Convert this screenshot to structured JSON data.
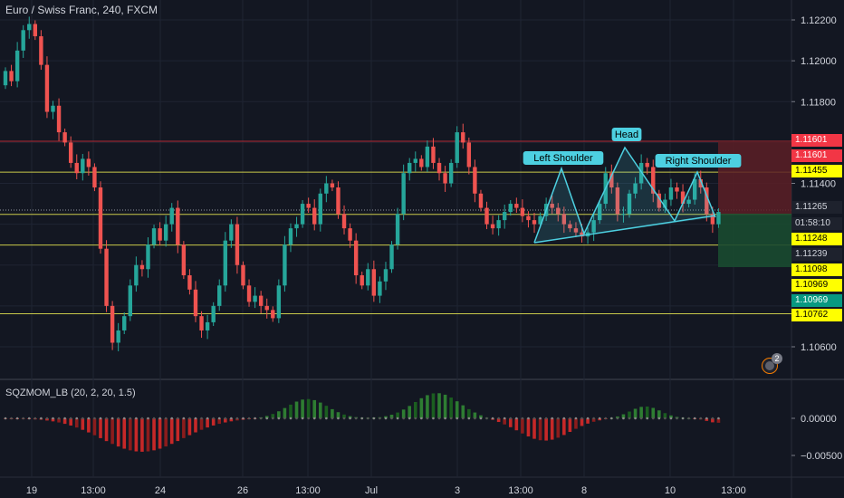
{
  "header": {
    "title": "Euro / Swiss Franc, 240, FXCM"
  },
  "indicator": {
    "label": "SQZMOM_LB (20, 2, 20, 1.5)"
  },
  "price_axis": {
    "ticks": [
      "1.12200",
      "1.12000",
      "1.11800",
      "1.11400",
      "1.10600"
    ]
  },
  "indicator_axis": {
    "ticks": [
      "0.00000",
      "−0.00500"
    ]
  },
  "time_axis": {
    "labels": [
      "19",
      "13:00",
      "24",
      "26",
      "13:00",
      "Jul",
      "3",
      "13:00",
      "8",
      "10",
      "13:00"
    ]
  },
  "price_tags": [
    {
      "text": "1.11601",
      "bg": "#f23645",
      "fg": "#ffffff"
    },
    {
      "text": "1.11601",
      "bg": "#f23645",
      "fg": "#ffffff"
    },
    {
      "text": "1.11455",
      "bg": "#ffff00",
      "fg": "#000000"
    },
    {
      "text": "1.11265",
      "bg": "#1e222d",
      "fg": "#d1d4dc"
    },
    {
      "text": "01:58:10",
      "bg": "#1e222d",
      "fg": "#d1d4dc"
    },
    {
      "text": "1.11248",
      "bg": "#ffff00",
      "fg": "#000000"
    },
    {
      "text": "1.11239",
      "bg": "#1e222d",
      "fg": "#d1d4dc"
    },
    {
      "text": "1.11098",
      "bg": "#ffff00",
      "fg": "#000000"
    },
    {
      "text": "1.10969",
      "bg": "#ffff00",
      "fg": "#000000"
    },
    {
      "text": "1.10969",
      "bg": "#089981",
      "fg": "#ffffff"
    },
    {
      "text": "1.10762",
      "bg": "#ffff00",
      "fg": "#000000"
    }
  ],
  "pattern_labels": {
    "left": "Left Shoulder",
    "head": "Head",
    "right": "Right Shoulder"
  },
  "alert": {
    "count": "2"
  },
  "colors": {
    "bg": "#131722",
    "up": "#26a69a",
    "down": "#ef5350",
    "hline": "#c9c94a",
    "red_line": "#b22833",
    "pattern": "#4dd0e1",
    "grid": "#1f2433"
  }
}
